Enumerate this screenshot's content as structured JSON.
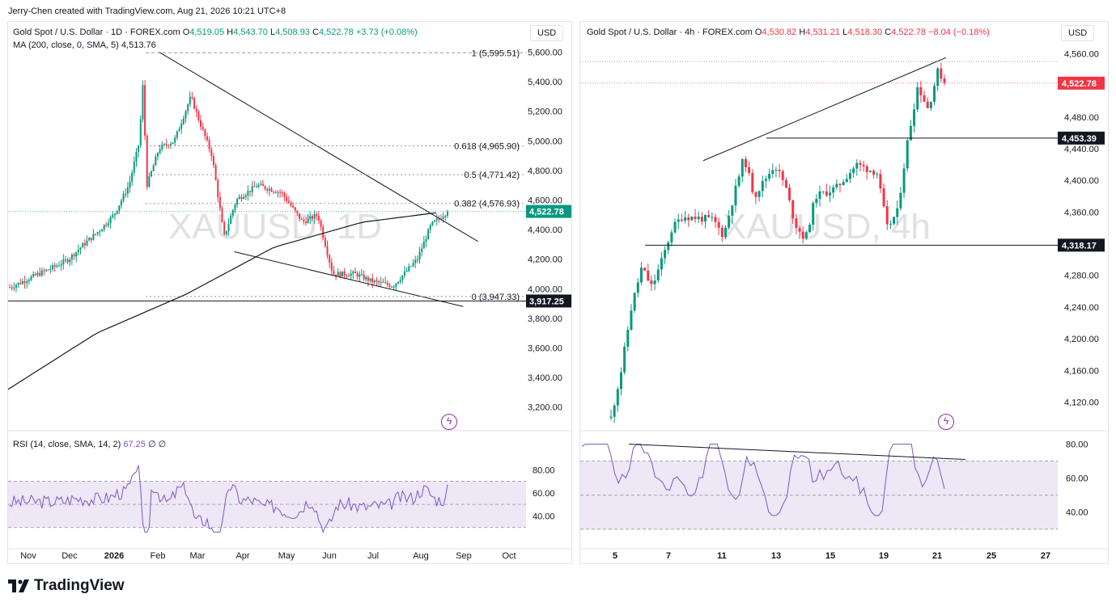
{
  "header": {
    "credit": "Jerry-Chen created with TradingView.com, Aug 21, 2026 10:21 UTC+8"
  },
  "colors": {
    "up": "#089981",
    "down": "#f23645",
    "rsi": "#7e57c2",
    "rsi_band": "#ede7f6",
    "ma": "#131722"
  },
  "left": {
    "legend": {
      "title": "Gold Spot / U.S. Dollar · 1D · FOREX.com",
      "o": "O",
      "o_val": "4,519.05",
      "h": "H",
      "h_val": "4,543.70",
      "l": "L",
      "l_val": "4,508.93",
      "c": "C",
      "c_val": "4,522.78",
      "chg": "+3.73 (+0.08%)"
    },
    "ma_legend": {
      "label": "MA (200, close, 0, SMA, 5)",
      "value": "4,513.76"
    },
    "currency": "USD",
    "watermark": "XAUUSD, 1D",
    "price_axis": [
      "5,600.00",
      "5,400.00",
      "5,200.00",
      "5,000.00",
      "4,800.00",
      "4,600.00",
      "4,400.00",
      "4,200.00",
      "4,000.00",
      "3,800.00",
      "3,600.00",
      "3,400.00",
      "3,200.00"
    ],
    "price_values": [
      5600,
      5400,
      5200,
      5000,
      4800,
      4600,
      4400,
      4200,
      4000,
      3800,
      3600,
      3400,
      3200
    ],
    "fib_levels": [
      {
        "label": "1 (5,595.51)",
        "value": 5595.51
      },
      {
        "label": "0.618 (4,965.90)",
        "value": 4965.9
      },
      {
        "label": "0.5 (4,771.42)",
        "value": 4771.42
      },
      {
        "label": "0.382 (4,576.93)",
        "value": 4576.93
      },
      {
        "label": "0 (3,947.33)",
        "value": 3947.33
      }
    ],
    "last_price": "4,522.78",
    "support_price": "3,917.25",
    "time_axis": [
      "Nov",
      "Dec",
      "2026",
      "Feb",
      "Mar",
      "Apr",
      "May",
      "Jun",
      "Jul",
      "Aug",
      "Sep",
      "Oct"
    ],
    "rsi_legend": {
      "label": "RSI (14, close, SMA, 14, 2)",
      "value": "67.25",
      "z1": "∅",
      "z2": "∅"
    },
    "rsi_axis": [
      "80.00",
      "60.00",
      "40.00"
    ]
  },
  "right": {
    "legend": {
      "title": "Gold Spot / U.S. Dollar · 4h · FOREX.com",
      "o": "O",
      "o_val": "4,530.82",
      "h": "H",
      "h_val": "4,531.21",
      "l": "L",
      "l_val": "4,518.30",
      "c": "C",
      "c_val": "4,522.78",
      "chg": "−8.04 (−0.18%)"
    },
    "currency": "USD",
    "watermark": "XAUUSD, 4h",
    "price_axis": [
      "4,560.00",
      "4,520.00",
      "4,480.00",
      "4,440.00",
      "4,400.00",
      "4,360.00",
      "4,320.00",
      "4,280.00",
      "4,240.00",
      "4,200.00",
      "4,160.00",
      "4,120.00"
    ],
    "price_values": [
      4560,
      4520,
      4480,
      4440,
      4400,
      4360,
      4320,
      4280,
      4240,
      4200,
      4160,
      4120
    ],
    "last_price": "4,522.78",
    "level_1": "4,453.39",
    "level_2": "4,318.17",
    "time_axis": [
      "5",
      "7",
      "11",
      "13",
      "15",
      "19",
      "21",
      "25",
      "27"
    ],
    "rsi_axis": [
      "80.00",
      "60.00",
      "40.00"
    ]
  },
  "chart_data": [
    {
      "type": "candlestick",
      "title": "Gold Spot / U.S. Dollar · 1D · FOREX.com",
      "interval": "1D",
      "ylim": [
        3100,
        5750
      ],
      "close_path": [
        [
          "Nov 1",
          4010
        ],
        [
          "Nov 10",
          4050
        ],
        [
          "Nov 20",
          4100
        ],
        [
          "Dec 1",
          4150
        ],
        [
          "Dec 10",
          4200
        ],
        [
          "Dec 20",
          4300
        ],
        [
          "Jan 1",
          4400
        ],
        [
          "Jan 10",
          4500
        ],
        [
          "Jan 20",
          4700
        ],
        [
          "Jan 27",
          5000
        ],
        [
          "Jan 29",
          5400
        ],
        [
          "Feb 2",
          4700
        ],
        [
          "Feb 10",
          4950
        ],
        [
          "Feb 20",
          5000
        ],
        [
          "Mar 1",
          5300
        ],
        [
          "Mar 6",
          5150
        ],
        [
          "Mar 15",
          4900
        ],
        [
          "Mar 23",
          4350
        ],
        [
          "Apr 1",
          4600
        ],
        [
          "Apr 15",
          4700
        ],
        [
          "May 1",
          4650
        ],
        [
          "May 15",
          4450
        ],
        [
          "May 25",
          4500
        ],
        [
          "Jun 5",
          4100
        ],
        [
          "Jun 20",
          4100
        ],
        [
          "Jul 1",
          4050
        ],
        [
          "Jul 15",
          4020
        ],
        [
          "Aug 1",
          4200
        ],
        [
          "Aug 10",
          4430
        ],
        [
          "Aug 21",
          4522.78
        ]
      ],
      "ma200_path": [
        [
          "Nov 1",
          3320
        ],
        [
          "Jan 1",
          3700
        ],
        [
          "Mar 1",
          3960
        ],
        [
          "May 1",
          4280
        ],
        [
          "Jul 1",
          4450
        ],
        [
          "Aug 21",
          4513.76
        ]
      ],
      "trendlines": [
        {
          "name": "descending resistance",
          "from": [
            "Jan 29",
            5600
          ],
          "to": [
            "Sep 5",
            4320
          ]
        },
        {
          "name": "lower trendline",
          "from": [
            "Mar 20",
            4250
          ],
          "to": [
            "Aug 25",
            3880
          ]
        }
      ],
      "horizontal_lines": [
        3917.25
      ],
      "fibonacci": [
        {
          "ratio": 1,
          "price": 5595.51
        },
        {
          "ratio": 0.618,
          "price": 4965.9
        },
        {
          "ratio": 0.5,
          "price": 4771.42
        },
        {
          "ratio": 0.382,
          "price": 4576.93
        },
        {
          "ratio": 0,
          "price": 3947.33
        }
      ],
      "ohlc_last": {
        "o": 4519.05,
        "h": 4543.7,
        "l": 4508.93,
        "c": 4522.78
      },
      "rsi": {
        "length": 14,
        "last": 67.25,
        "ylim": [
          20,
          90
        ],
        "bands": [
          30,
          70
        ]
      }
    },
    {
      "type": "candlestick",
      "title": "Gold Spot / U.S. Dollar · 4h · FOREX.com",
      "interval": "4h",
      "ylim": [
        4095,
        4590
      ],
      "close_path": [
        [
          "Aug 5",
          4100
        ],
        [
          "Aug 5.5",
          4160
        ],
        [
          "Aug 6",
          4240
        ],
        [
          "Aug 6.5",
          4290
        ],
        [
          "Aug 7",
          4265
        ],
        [
          "Aug 7.5",
          4300
        ],
        [
          "Aug 8",
          4340
        ],
        [
          "Aug 8.5",
          4355
        ],
        [
          "Aug 10",
          4350
        ],
        [
          "Aug 10.5",
          4330
        ],
        [
          "Aug 11",
          4380
        ],
        [
          "Aug 11.5",
          4430
        ],
        [
          "Aug 12",
          4380
        ],
        [
          "Aug 13",
          4420
        ],
        [
          "Aug 13.5",
          4395
        ],
        [
          "Aug 14",
          4345
        ],
        [
          "Aug 14.5",
          4325
        ],
        [
          "Aug 15",
          4380
        ],
        [
          "Aug 16",
          4390
        ],
        [
          "Aug 17",
          4420
        ],
        [
          "Aug 18",
          4410
        ],
        [
          "Aug 18.5",
          4340
        ],
        [
          "Aug 19",
          4360
        ],
        [
          "Aug 19.5",
          4450
        ],
        [
          "Aug 20",
          4520
        ],
        [
          "Aug 20.5",
          4490
        ],
        [
          "Aug 21",
          4540
        ],
        [
          "Aug 21.3",
          4522.78
        ]
      ],
      "trendlines": [
        {
          "name": "rising resistance",
          "from": [
            "Aug 10",
            4430
          ],
          "to": [
            "Aug 22",
            4555
          ]
        }
      ],
      "horizontal_lines": [
        4453.39,
        4318.17
      ],
      "ohlc_last": {
        "o": 4530.82,
        "h": 4531.21,
        "l": 4518.3,
        "c": 4522.78
      },
      "rsi": {
        "ylim": [
          28,
          85
        ],
        "bands": [
          30,
          70
        ]
      }
    }
  ]
}
